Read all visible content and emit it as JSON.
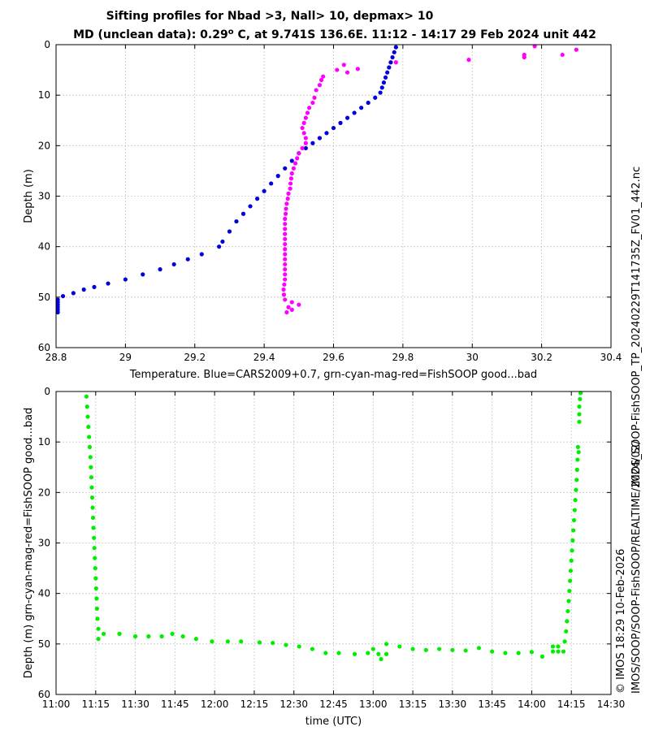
{
  "title_line1": "Sifting profiles for Nbad >3, Nall> 10, depmax> 10",
  "title_line2_prefix": "MD (unclean data): 0.29",
  "title_line2_sup": "o",
  "title_line2_suffix": " C, at 9.741S 136.6E. 11:12 - 14:17 29 Feb 2024 unit 442",
  "side_label_top": "IMOS_SOOP-FishSOOP_TP_20240229T141735Z_FV01_442.nc",
  "side_label_bottom_1": "IMOS/SOOP/SOOP-FishSOOP/REALTIME/2024/02/",
  "side_label_bottom_2": "© IMOS 18:29 10-Feb-2026",
  "colors": {
    "cars": "#0000dd",
    "fishsoop_bad": "#ff00ff",
    "fishsoop_good": "#00ee00",
    "grid": "#c8c8c8"
  },
  "chart_data": [
    {
      "type": "scatter",
      "xlabel": "Temperature. Blue=CARS2009+0.7, grn-cyan-mag-red=FishSOOP good...bad",
      "ylabel": "Depth (m)",
      "xlim": [
        28.8,
        30.4
      ],
      "ylim": [
        0,
        60
      ],
      "y_reversed": true,
      "grid": true,
      "xticks": [
        28.8,
        29,
        29.2,
        29.4,
        29.6,
        29.8,
        30,
        30.2,
        30.4
      ],
      "xtick_labels": [
        "28.8",
        "29",
        "29.2",
        "29.4",
        "29.6",
        "29.8",
        "30",
        "30.2",
        "30.4"
      ],
      "yticks": [
        0,
        10,
        20,
        30,
        40,
        50,
        60
      ],
      "ytick_labels": [
        "0",
        "10",
        "20",
        "30",
        "40",
        "50",
        "60"
      ],
      "series": [
        {
          "color": "cars",
          "points": [
            [
              29.78,
              0.5
            ],
            [
              29.775,
              1.5
            ],
            [
              29.77,
              2.5
            ],
            [
              29.765,
              3.5
            ],
            [
              29.76,
              4.5
            ],
            [
              29.755,
              5.5
            ],
            [
              29.75,
              6.5
            ],
            [
              29.745,
              7.5
            ],
            [
              29.74,
              8.5
            ],
            [
              29.735,
              9.5
            ],
            [
              29.72,
              10.5
            ],
            [
              29.7,
              11.5
            ],
            [
              29.68,
              12.5
            ],
            [
              29.66,
              13.5
            ],
            [
              29.64,
              14.5
            ],
            [
              29.62,
              15.5
            ],
            [
              29.6,
              16.5
            ],
            [
              29.58,
              17.5
            ],
            [
              29.56,
              18.5
            ],
            [
              29.54,
              19.5
            ],
            [
              29.52,
              20.5
            ],
            [
              29.5,
              21.5
            ],
            [
              29.48,
              23
            ],
            [
              29.46,
              24.5
            ],
            [
              29.44,
              26
            ],
            [
              29.42,
              27.5
            ],
            [
              29.4,
              29
            ],
            [
              29.38,
              30.5
            ],
            [
              29.36,
              32
            ],
            [
              29.34,
              33.5
            ],
            [
              29.32,
              35
            ],
            [
              29.3,
              37
            ],
            [
              29.28,
              39
            ],
            [
              29.27,
              40
            ],
            [
              29.22,
              41.5
            ],
            [
              29.18,
              42.5
            ],
            [
              29.14,
              43.5
            ],
            [
              29.1,
              44.5
            ],
            [
              29.05,
              45.5
            ],
            [
              29.0,
              46.5
            ],
            [
              28.95,
              47.3
            ],
            [
              28.91,
              48
            ],
            [
              28.88,
              48.5
            ],
            [
              28.85,
              49.2
            ],
            [
              28.82,
              49.8
            ],
            [
              28.805,
              50.5
            ],
            [
              28.805,
              51
            ],
            [
              28.805,
              51.5
            ],
            [
              28.805,
              52
            ],
            [
              28.805,
              52.5
            ],
            [
              28.805,
              53
            ]
          ]
        },
        {
          "color": "fishsoop_bad",
          "points": [
            [
              30.3,
              1
            ],
            [
              30.18,
              0.3
            ],
            [
              30.26,
              2
            ],
            [
              30.15,
              2
            ],
            [
              30.15,
              2.5
            ],
            [
              29.99,
              3
            ],
            [
              29.78,
              3.5
            ],
            [
              29.63,
              4
            ],
            [
              29.67,
              4.8
            ],
            [
              29.61,
              5
            ],
            [
              29.64,
              5.5
            ],
            [
              29.57,
              6.3
            ],
            [
              29.565,
              7
            ],
            [
              29.56,
              8
            ],
            [
              29.55,
              9
            ],
            [
              29.545,
              10.5
            ],
            [
              29.54,
              11.5
            ],
            [
              29.53,
              12.5
            ],
            [
              29.525,
              13.5
            ],
            [
              29.52,
              14.5
            ],
            [
              29.515,
              15.5
            ],
            [
              29.51,
              16.5
            ],
            [
              29.515,
              17.5
            ],
            [
              29.52,
              18.5
            ],
            [
              29.52,
              19.5
            ],
            [
              29.51,
              20.5
            ],
            [
              29.5,
              21.5
            ],
            [
              29.495,
              22.5
            ],
            [
              29.49,
              23.5
            ],
            [
              29.485,
              24.5
            ],
            [
              29.48,
              25.5
            ],
            [
              29.478,
              26.5
            ],
            [
              29.476,
              27.5
            ],
            [
              29.475,
              28.5
            ],
            [
              29.47,
              29.5
            ],
            [
              29.468,
              30.5
            ],
            [
              29.465,
              31.5
            ],
            [
              29.463,
              32.5
            ],
            [
              29.462,
              33.5
            ],
            [
              29.46,
              34.5
            ],
            [
              29.46,
              35.5
            ],
            [
              29.46,
              36.5
            ],
            [
              29.46,
              37.5
            ],
            [
              29.46,
              38.5
            ],
            [
              29.46,
              39.5
            ],
            [
              29.46,
              40.5
            ],
            [
              29.46,
              41.5
            ],
            [
              29.46,
              42.5
            ],
            [
              29.46,
              43.5
            ],
            [
              29.46,
              44.5
            ],
            [
              29.46,
              45.5
            ],
            [
              29.46,
              46.5
            ],
            [
              29.458,
              47.5
            ],
            [
              29.456,
              48.5
            ],
            [
              29.457,
              49.5
            ],
            [
              29.46,
              50.5
            ],
            [
              29.48,
              51
            ],
            [
              29.5,
              51.5
            ],
            [
              29.47,
              52
            ],
            [
              29.48,
              52.5
            ],
            [
              29.465,
              53
            ]
          ]
        }
      ]
    },
    {
      "type": "scatter",
      "xlabel": "time (UTC)",
      "ylabel": "Depth (m) grn-cyan-mag-red=FishSOOP good...bad",
      "xlim": [
        "11:00",
        "14:30"
      ],
      "ylim": [
        0,
        60
      ],
      "y_reversed": true,
      "grid": true,
      "xticks": [
        "11:00",
        "11:15",
        "11:30",
        "11:45",
        "12:00",
        "12:15",
        "12:30",
        "12:45",
        "13:00",
        "13:15",
        "13:30",
        "13:45",
        "14:00",
        "14:15",
        "14:30"
      ],
      "xtick_labels": [
        "11:00",
        "11:15",
        "11:30",
        "11:45",
        "12:00",
        "12:15",
        "12:30",
        "12:45",
        "13:00",
        "13:15",
        "13:30",
        "13:45",
        "14:00",
        "14:15",
        "14:30"
      ],
      "yticks": [
        0,
        10,
        20,
        30,
        40,
        50,
        60
      ],
      "ytick_labels": [
        "0",
        "10",
        "20",
        "30",
        "40",
        "50",
        "60"
      ],
      "series": [
        {
          "color": "fishsoop_good",
          "points": [
            [
              "11:11:30",
              1
            ],
            [
              "11:11:45",
              3
            ],
            [
              "11:12:00",
              5
            ],
            [
              "11:12:15",
              7
            ],
            [
              "11:12:30",
              9
            ],
            [
              "11:12:45",
              11
            ],
            [
              "11:13:00",
              13
            ],
            [
              "11:13:10",
              15
            ],
            [
              "11:13:20",
              17
            ],
            [
              "11:13:30",
              19
            ],
            [
              "11:13:40",
              21
            ],
            [
              "11:13:50",
              23
            ],
            [
              "11:14:00",
              25
            ],
            [
              "11:14:10",
              27
            ],
            [
              "11:14:20",
              29
            ],
            [
              "11:14:30",
              31
            ],
            [
              "11:14:40",
              33
            ],
            [
              "11:14:50",
              35
            ],
            [
              "11:15:00",
              37
            ],
            [
              "11:15:10",
              39
            ],
            [
              "11:15:20",
              41
            ],
            [
              "11:15:30",
              43
            ],
            [
              "11:15:40",
              45
            ],
            [
              "11:16:00",
              47
            ],
            [
              "11:16:00",
              49
            ],
            [
              "11:18:00",
              48
            ],
            [
              "11:24:00",
              48
            ],
            [
              "11:30:00",
              48.5
            ],
            [
              "11:35:00",
              48.5
            ],
            [
              "11:40:00",
              48.5
            ],
            [
              "11:44:00",
              48
            ],
            [
              "11:48:00",
              48.5
            ],
            [
              "11:53:00",
              49
            ],
            [
              "11:59:00",
              49.5
            ],
            [
              "12:05:00",
              49.5
            ],
            [
              "12:10:00",
              49.5
            ],
            [
              "12:17:00",
              49.7
            ],
            [
              "12:22:00",
              49.8
            ],
            [
              "12:27:00",
              50.2
            ],
            [
              "12:32:00",
              50.5
            ],
            [
              "12:37:00",
              51
            ],
            [
              "12:42:00",
              51.8
            ],
            [
              "12:47:00",
              51.8
            ],
            [
              "12:53:00",
              52
            ],
            [
              "12:58:00",
              51.8
            ],
            [
              "13:00:00",
              51
            ],
            [
              "13:02:00",
              52
            ],
            [
              "13:03:00",
              53
            ],
            [
              "13:05:00",
              50
            ],
            [
              "13:05:00",
              52
            ],
            [
              "13:10:00",
              50.5
            ],
            [
              "13:15:00",
              51
            ],
            [
              "13:20:00",
              51.2
            ],
            [
              "13:25:00",
              51
            ],
            [
              "13:30:00",
              51.2
            ],
            [
              "13:35:00",
              51.3
            ],
            [
              "13:40:00",
              50.8
            ],
            [
              "13:45:00",
              51.5
            ],
            [
              "13:50:00",
              51.8
            ],
            [
              "13:55:00",
              51.8
            ],
            [
              "14:00:00",
              51.6
            ],
            [
              "14:04:00",
              52.5
            ],
            [
              "14:08:00",
              51.5
            ],
            [
              "14:08:00",
              50.5
            ],
            [
              "14:10:00",
              51.5
            ],
            [
              "14:10:00",
              50.5
            ],
            [
              "14:12:00",
              51.5
            ],
            [
              "14:12:30",
              49.5
            ],
            [
              "14:13:00",
              47.5
            ],
            [
              "14:13:20",
              45.5
            ],
            [
              "14:13:40",
              43.5
            ],
            [
              "14:14:00",
              41.5
            ],
            [
              "14:14:15",
              39.5
            ],
            [
              "14:14:30",
              37.5
            ],
            [
              "14:14:45",
              35.5
            ],
            [
              "14:15:00",
              33.5
            ],
            [
              "14:15:15",
              31.5
            ],
            [
              "14:15:30",
              29.5
            ],
            [
              "14:15:45",
              27.5
            ],
            [
              "14:16:00",
              25.5
            ],
            [
              "14:16:15",
              23.5
            ],
            [
              "14:16:30",
              21.5
            ],
            [
              "14:16:45",
              19.5
            ],
            [
              "14:17:00",
              17.5
            ],
            [
              "14:17:10",
              15.5
            ],
            [
              "14:17:20",
              13.5
            ],
            [
              "14:17:30",
              11
            ],
            [
              "14:17:45",
              12
            ],
            [
              "14:18:00",
              6
            ],
            [
              "14:18:00",
              4.5
            ],
            [
              "14:18:00",
              3
            ],
            [
              "14:18:15",
              1.5
            ],
            [
              "14:18:30",
              0.3
            ]
          ]
        }
      ]
    }
  ]
}
